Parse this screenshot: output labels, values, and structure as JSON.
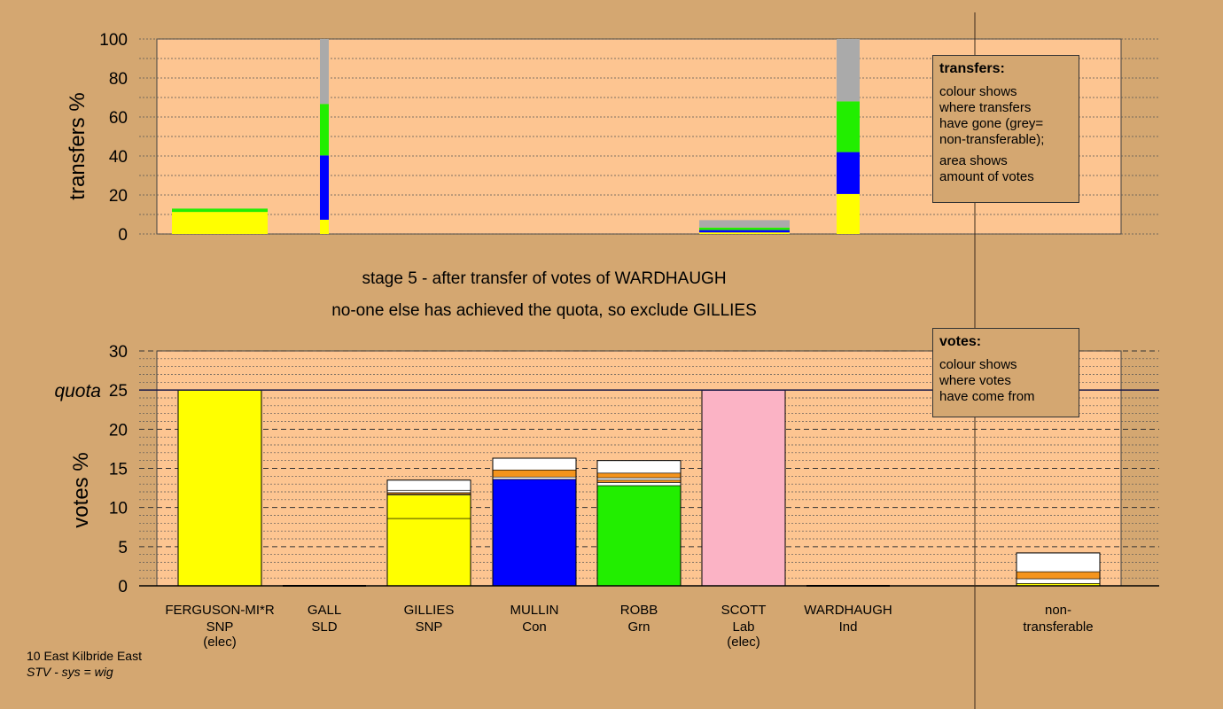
{
  "chart_data": [
    {
      "type": "bar",
      "stacked": true,
      "ylabel": "transfers %",
      "ylim": [
        0,
        100
      ],
      "yticks": [
        0,
        20,
        40,
        60,
        80,
        100
      ],
      "grid": "dotted",
      "categories": [
        "FERGUSON-MI*R",
        "GALL",
        "GILLIES",
        "MULLIN",
        "ROBB",
        "SCOTT",
        "WARDHAUGH",
        "non-transferable"
      ],
      "bars": [
        {
          "category": "FERGUSON-MI*R",
          "segments": [
            {
              "color": "#ffff00",
              "value": 11.3
            },
            {
              "color": "#22ee00",
              "value": 1.7
            }
          ]
        },
        {
          "category": "GALL",
          "segments": [
            {
              "color": "#ffff00",
              "value": 7.3
            },
            {
              "color": "#0000ff",
              "value": 33.0
            },
            {
              "color": "#22ee00",
              "value": 26.4
            },
            {
              "color": "#aaaaaa",
              "value": 33.3
            }
          ]
        },
        {
          "category": "SCOTT",
          "segments": [
            {
              "color": "#ffff00",
              "value": 0.8
            },
            {
              "color": "#0000ff",
              "value": 1.2
            },
            {
              "color": "#22ee00",
              "value": 1.3
            },
            {
              "color": "#aaaaaa",
              "value": 3.8
            }
          ]
        },
        {
          "category": "WARDHAUGH",
          "segments": [
            {
              "color": "#ffff00",
              "value": 20.5
            },
            {
              "color": "#0000ff",
              "value": 21.5
            },
            {
              "color": "#22ee00",
              "value": 26.0
            },
            {
              "color": "#aaaaaa",
              "value": 32.0
            }
          ]
        }
      ]
    },
    {
      "type": "bar",
      "stacked": true,
      "ylabel": "votes %",
      "ylim": [
        0,
        30
      ],
      "yticks": [
        0,
        5,
        10,
        15,
        20,
        25,
        30
      ],
      "quota": 25,
      "quota_label": "quota",
      "grid": "dashed",
      "bars": [
        {
          "category": "FERGUSON-MI*R",
          "segments": [
            {
              "color": "#ffff00",
              "value": 25
            }
          ]
        },
        {
          "category": "GALL",
          "segments": []
        },
        {
          "category": "GILLIES",
          "segments": [
            {
              "color": "#ffff00",
              "value": 8.6
            },
            {
              "color": "#ffff00",
              "value": 3.0
            },
            {
              "color": "#ffffff",
              "value": 0.1
            },
            {
              "color": "#f4941c",
              "value": 0.2
            },
            {
              "color": "#ffffff",
              "value": 0.3
            },
            {
              "color": "#ffffff",
              "value": 1.3
            }
          ]
        },
        {
          "category": "MULLIN",
          "segments": [
            {
              "color": "#0000ff",
              "value": 13.6
            },
            {
              "color": "#ffffff",
              "value": 0.3
            },
            {
              "color": "#f4941c",
              "value": 0.9
            },
            {
              "color": "#ffffff",
              "value": 1.5
            }
          ]
        },
        {
          "category": "ROBB",
          "segments": [
            {
              "color": "#22ee00",
              "value": 12.8
            },
            {
              "color": "#ffffff",
              "value": 0.4
            },
            {
              "color": "#f4941c",
              "value": 0.3
            },
            {
              "color": "#ffffff",
              "value": 0.3
            },
            {
              "color": "#f4941c",
              "value": 0.6
            },
            {
              "color": "#ffffff",
              "value": 1.6
            }
          ]
        },
        {
          "category": "SCOTT",
          "segments": [
            {
              "color": "#fbb3c5",
              "value": 25
            }
          ]
        },
        {
          "category": "WARDHAUGH",
          "segments": []
        },
        {
          "category": "non-transferable",
          "segments": [
            {
              "color": "#ffff00",
              "value": 0.3
            },
            {
              "color": "#ffffff",
              "value": 0.6
            },
            {
              "color": "#f4941c",
              "value": 0.9
            },
            {
              "color": "#ffffff",
              "value": 2.4
            }
          ]
        }
      ]
    }
  ],
  "candidates": [
    {
      "name": "FERGUSON-MI*R",
      "party": "SNP",
      "status": "(elec)"
    },
    {
      "name": "GALL",
      "party": "SLD",
      "status": ""
    },
    {
      "name": "GILLIES",
      "party": "SNP",
      "status": ""
    },
    {
      "name": "MULLIN",
      "party": "Con",
      "status": ""
    },
    {
      "name": "ROBB",
      "party": "Grn",
      "status": ""
    },
    {
      "name": "SCOTT",
      "party": "Lab",
      "status": "(elec)"
    },
    {
      "name": "WARDHAUGH",
      "party": "Ind",
      "status": ""
    }
  ],
  "nontransferable_label": [
    "non-",
    "transferable"
  ],
  "stage_line1": "stage 5 - after transfer of votes of WARDHAUGH",
  "stage_line2": "no-one else has achieved the quota, so exclude GILLIES",
  "legend_transfers": {
    "title": "transfers:",
    "para1": [
      "colour shows",
      "where transfers",
      "have gone (grey=",
      "non-transferable);"
    ],
    "para2": [
      "area shows",
      "amount of votes"
    ]
  },
  "legend_votes": {
    "title": "votes:",
    "para1": [
      "colour shows",
      "where votes",
      "have come from"
    ]
  },
  "footer": {
    "constituency": "10 East Kilbride East",
    "system": "STV - sys = wig"
  },
  "colors": {
    "background": "#d4a771",
    "plot": "#fdc591",
    "yellow": "#ffff00",
    "blue": "#0000ff",
    "green": "#22ee00",
    "grey": "#aaaaaa",
    "pink": "#fbb3c5",
    "orange": "#f4941c",
    "white": "#ffffff"
  }
}
